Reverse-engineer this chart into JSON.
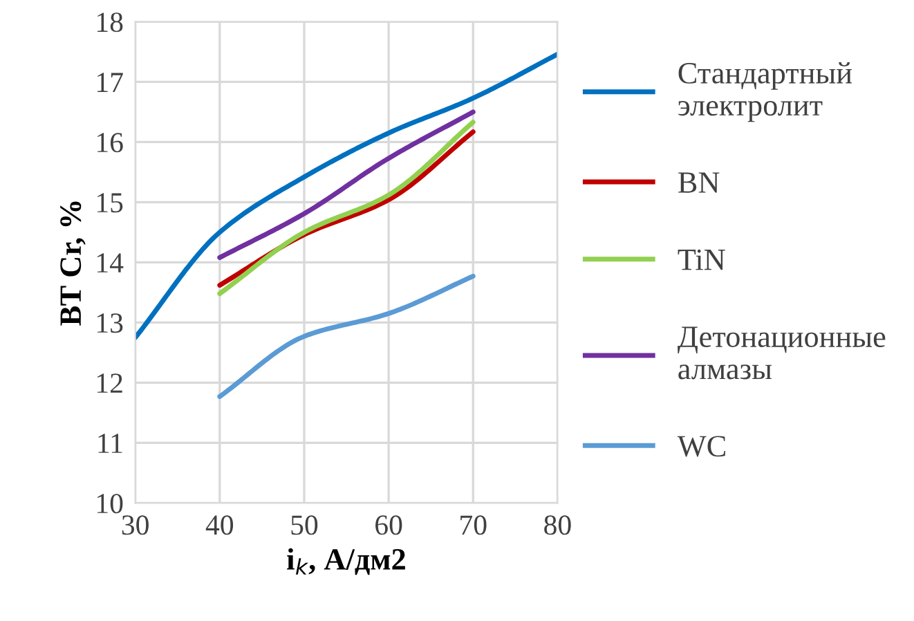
{
  "chart_data": {
    "type": "line",
    "xlabel": "i$_{k}$, А/дм2",
    "ylabel": "ВТ Cr, %",
    "xlim": [
      30,
      80
    ],
    "xticks": [
      30,
      40,
      50,
      60,
      70,
      80
    ],
    "ylim": [
      10,
      18
    ],
    "yticks": [
      10,
      11,
      12,
      13,
      14,
      15,
      16,
      17,
      18
    ],
    "grid": true,
    "legend": "right",
    "line_style": "solid",
    "series": [
      {
        "name": "Стандартный\nэлектролит",
        "color": "#0070c0",
        "x": [
          30,
          40,
          50,
          60,
          70,
          80
        ],
        "values": [
          12.75,
          14.5,
          15.42,
          16.15,
          16.73,
          17.46
        ]
      },
      {
        "name": "BN",
        "color": "#c00000",
        "x": [
          40,
          50,
          60,
          70
        ],
        "values": [
          13.62,
          14.46,
          15.04,
          16.17
        ]
      },
      {
        "name": "TiN",
        "color": "#92d050",
        "x": [
          40,
          50,
          60,
          70
        ],
        "values": [
          13.48,
          14.5,
          15.12,
          16.33
        ]
      },
      {
        "name": "Детонационные\nалмазы",
        "color": "#7030a0",
        "x": [
          40,
          50,
          60,
          70
        ],
        "values": [
          14.08,
          14.81,
          15.73,
          16.5
        ]
      },
      {
        "name": "WC",
        "color": "#5b9bd5",
        "x": [
          40,
          50,
          60,
          70
        ],
        "values": [
          11.77,
          12.77,
          13.15,
          13.77
        ]
      }
    ]
  }
}
